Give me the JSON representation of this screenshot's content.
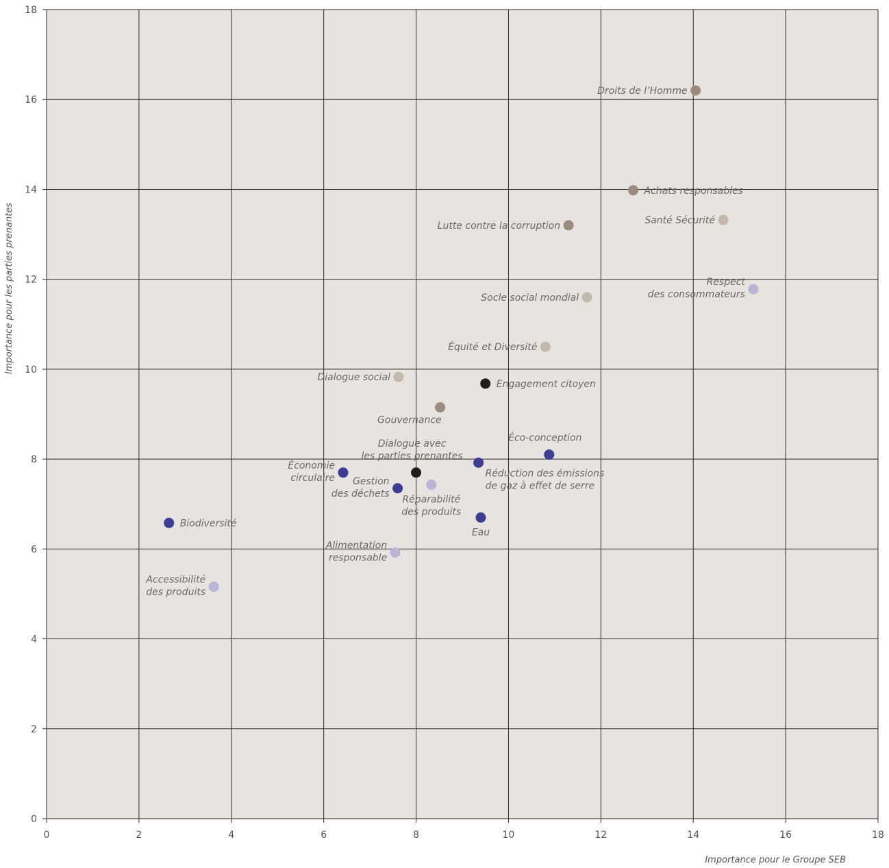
{
  "colors": {
    "plot_background": "#e7e3df",
    "grid": "#2a2a2a",
    "governance": "#9a8b7d",
    "social": "#c2b8ac",
    "environment": "#3e3d94",
    "products": "#b9b5d6",
    "highlight": "#1f1f1f"
  },
  "chart_data": {
    "type": "scatter",
    "xlabel": "Importance pour le Groupe SEB",
    "ylabel": "Importance pour les parties prenantes",
    "xlim": [
      0,
      18
    ],
    "ylim": [
      0,
      18
    ],
    "xticks": [
      0,
      2,
      4,
      6,
      8,
      10,
      12,
      14,
      16,
      18
    ],
    "yticks": [
      0,
      2,
      4,
      6,
      8,
      10,
      12,
      14,
      16,
      18
    ],
    "grid": true,
    "points": [
      {
        "label": [
          "Droits de l’Homme"
        ],
        "x": 14.05,
        "y": 16.2,
        "color": "governance",
        "label_pos": "left"
      },
      {
        "label": [
          "Achats responsables"
        ],
        "x": 12.7,
        "y": 13.98,
        "color": "governance",
        "label_pos": "right"
      },
      {
        "label": [
          "Lutte contre la corruption"
        ],
        "x": 11.3,
        "y": 13.2,
        "color": "governance",
        "label_pos": "left"
      },
      {
        "label": [
          "Santé Sécurité"
        ],
        "x": 14.65,
        "y": 13.32,
        "color": "social",
        "label_pos": "left"
      },
      {
        "label": [
          "Respect",
          "des consommateurs"
        ],
        "x": 15.3,
        "y": 11.78,
        "color": "products",
        "label_pos": "left"
      },
      {
        "label": [
          "Socle social mondial"
        ],
        "x": 11.7,
        "y": 11.6,
        "color": "social",
        "label_pos": "left"
      },
      {
        "label": [
          "Équité et Diversité"
        ],
        "x": 10.8,
        "y": 10.5,
        "color": "social",
        "label_pos": "left"
      },
      {
        "label": [
          "Dialogue social"
        ],
        "x": 7.62,
        "y": 9.83,
        "color": "social",
        "label_pos": "left"
      },
      {
        "label": [
          "Engagement citoyen"
        ],
        "x": 9.5,
        "y": 9.68,
        "color": "highlight",
        "label_pos": "right"
      },
      {
        "label": [
          "Gouvernance"
        ],
        "x": 8.52,
        "y": 9.15,
        "color": "governance",
        "label_pos": "below-left"
      },
      {
        "label": [
          "Dialogue avec",
          "les parties prenantes"
        ],
        "x": 8.0,
        "y": 7.7,
        "color": "highlight",
        "label_pos": "above"
      },
      {
        "label": [
          "Éco-conception"
        ],
        "x": 10.88,
        "y": 8.1,
        "color": "environment",
        "label_pos": "above"
      },
      {
        "label": [
          "Économie",
          "circulaire"
        ],
        "x": 6.42,
        "y": 7.7,
        "color": "environment",
        "label_pos": "left"
      },
      {
        "label": [
          "Réduction des émissions",
          "de gaz à effet de serre"
        ],
        "x": 9.35,
        "y": 7.92,
        "color": "environment",
        "label_pos": "below-right"
      },
      {
        "label": [
          "Gestion",
          "des déchets"
        ],
        "x": 7.6,
        "y": 7.35,
        "color": "environment",
        "label_pos": "left"
      },
      {
        "label": [
          "Réparabilité",
          "des produits"
        ],
        "x": 8.33,
        "y": 7.43,
        "color": "products",
        "label_pos": "below"
      },
      {
        "label": [
          "Eau"
        ],
        "x": 9.4,
        "y": 6.7,
        "color": "environment",
        "label_pos": "below"
      },
      {
        "label": [
          "Biodiversité"
        ],
        "x": 2.65,
        "y": 6.58,
        "color": "environment",
        "label_pos": "right"
      },
      {
        "label": [
          "Alimentation",
          "responsable"
        ],
        "x": 7.55,
        "y": 5.92,
        "color": "products",
        "label_pos": "left"
      },
      {
        "label": [
          "Accessibilité",
          "des produits"
        ],
        "x": 3.62,
        "y": 5.16,
        "color": "products",
        "label_pos": "left"
      }
    ]
  }
}
